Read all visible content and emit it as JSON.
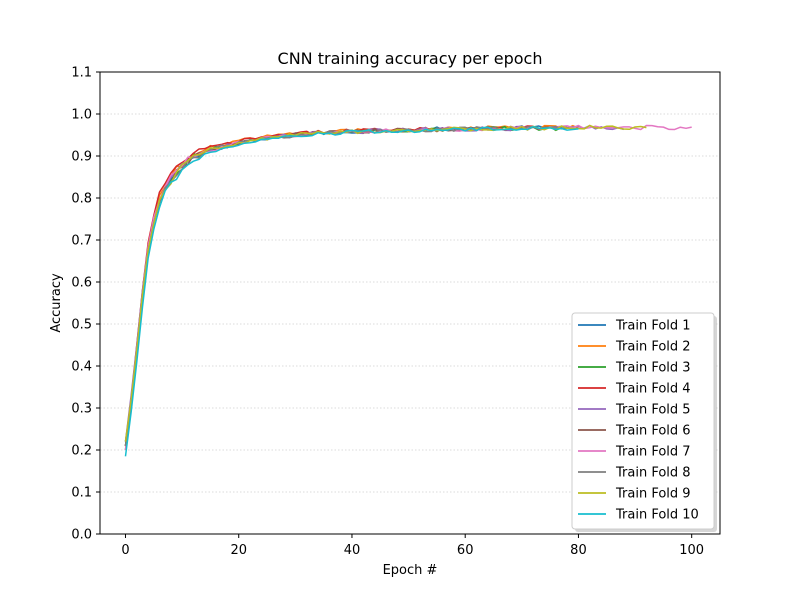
{
  "chart_data": {
    "type": "line",
    "title": "CNN training accuracy per epoch",
    "xlabel": "Epoch #",
    "ylabel": "Accuracy",
    "xlim": [
      -4.5,
      105
    ],
    "ylim": [
      0,
      1.1
    ],
    "xticks": [
      0,
      20,
      40,
      60,
      80,
      100
    ],
    "yticks": [
      0.0,
      0.1,
      0.2,
      0.3,
      0.4,
      0.5,
      0.6,
      0.7,
      0.8,
      0.9,
      1.0,
      1.1
    ],
    "grid": "horizontal dotted",
    "legend_position": "lower-right",
    "series": [
      {
        "name": "Train Fold 1",
        "color": "#1f77b4",
        "last_epoch": 78,
        "start": 0.22,
        "x": [
          0,
          1,
          2,
          3,
          4,
          5,
          6,
          7,
          8,
          9,
          10,
          12,
          15,
          20,
          25,
          30,
          35,
          40,
          45,
          50,
          55,
          60,
          65,
          70,
          75,
          78
        ],
        "values": [
          0.22,
          0.31,
          0.42,
          0.56,
          0.67,
          0.74,
          0.79,
          0.82,
          0.84,
          0.86,
          0.87,
          0.9,
          0.915,
          0.93,
          0.94,
          0.95,
          0.955,
          0.958,
          0.96,
          0.962,
          0.964,
          0.965,
          0.966,
          0.967,
          0.967,
          0.968
        ]
      },
      {
        "name": "Train Fold 2",
        "color": "#ff7f0e",
        "last_epoch": 80,
        "start": 0.21,
        "x": [
          0,
          1,
          2,
          3,
          4,
          5,
          6,
          7,
          8,
          9,
          10,
          12,
          15,
          20,
          25,
          30,
          35,
          40,
          45,
          50,
          55,
          60,
          65,
          70,
          75,
          80
        ],
        "values": [
          0.21,
          0.32,
          0.44,
          0.57,
          0.68,
          0.75,
          0.8,
          0.83,
          0.85,
          0.87,
          0.88,
          0.9,
          0.92,
          0.935,
          0.945,
          0.952,
          0.957,
          0.96,
          0.962,
          0.963,
          0.964,
          0.966,
          0.967,
          0.968,
          0.968,
          0.968
        ]
      },
      {
        "name": "Train Fold 3",
        "color": "#2ca02c",
        "last_epoch": 77,
        "start": 0.21,
        "x": [
          0,
          1,
          2,
          3,
          4,
          5,
          6,
          7,
          8,
          9,
          10,
          12,
          15,
          20,
          25,
          30,
          35,
          40,
          45,
          50,
          55,
          60,
          65,
          70,
          77
        ],
        "values": [
          0.21,
          0.31,
          0.43,
          0.56,
          0.67,
          0.74,
          0.79,
          0.82,
          0.845,
          0.86,
          0.875,
          0.9,
          0.915,
          0.93,
          0.942,
          0.95,
          0.955,
          0.958,
          0.96,
          0.962,
          0.963,
          0.964,
          0.965,
          0.966,
          0.966
        ]
      },
      {
        "name": "Train Fold 4",
        "color": "#d62728",
        "last_epoch": 72,
        "start": 0.2,
        "x": [
          0,
          1,
          2,
          3,
          4,
          5,
          6,
          7,
          8,
          9,
          10,
          12,
          15,
          20,
          25,
          30,
          35,
          40,
          45,
          50,
          55,
          60,
          65,
          72
        ],
        "values": [
          0.2,
          0.32,
          0.45,
          0.58,
          0.69,
          0.76,
          0.81,
          0.835,
          0.855,
          0.87,
          0.88,
          0.91,
          0.92,
          0.935,
          0.945,
          0.952,
          0.957,
          0.96,
          0.962,
          0.963,
          0.965,
          0.966,
          0.967,
          0.968
        ]
      },
      {
        "name": "Train Fold 5",
        "color": "#9467bd",
        "last_epoch": 88,
        "start": 0.22,
        "x": [
          0,
          1,
          2,
          3,
          4,
          5,
          6,
          7,
          8,
          9,
          10,
          12,
          15,
          20,
          25,
          30,
          35,
          40,
          45,
          50,
          55,
          60,
          65,
          70,
          75,
          80,
          85,
          88
        ],
        "values": [
          0.22,
          0.33,
          0.45,
          0.58,
          0.68,
          0.75,
          0.8,
          0.83,
          0.85,
          0.865,
          0.88,
          0.9,
          0.915,
          0.93,
          0.942,
          0.95,
          0.955,
          0.958,
          0.96,
          0.962,
          0.963,
          0.964,
          0.965,
          0.966,
          0.967,
          0.968,
          0.968,
          0.968
        ]
      },
      {
        "name": "Train Fold 6",
        "color": "#8c564b",
        "last_epoch": 75,
        "start": 0.21,
        "x": [
          0,
          1,
          2,
          3,
          4,
          5,
          6,
          7,
          8,
          9,
          10,
          12,
          15,
          20,
          25,
          30,
          35,
          40,
          45,
          50,
          55,
          60,
          65,
          70,
          75
        ],
        "values": [
          0.21,
          0.31,
          0.43,
          0.56,
          0.67,
          0.74,
          0.79,
          0.82,
          0.84,
          0.86,
          0.875,
          0.895,
          0.915,
          0.93,
          0.942,
          0.95,
          0.955,
          0.958,
          0.96,
          0.962,
          0.963,
          0.964,
          0.965,
          0.966,
          0.966
        ]
      },
      {
        "name": "Train Fold 7",
        "color": "#e377c2",
        "last_epoch": 100,
        "start": 0.2,
        "x": [
          0,
          1,
          2,
          3,
          4,
          5,
          6,
          7,
          8,
          9,
          10,
          12,
          15,
          20,
          25,
          30,
          35,
          40,
          45,
          50,
          55,
          60,
          65,
          70,
          75,
          80,
          85,
          90,
          95,
          100
        ],
        "values": [
          0.2,
          0.32,
          0.44,
          0.57,
          0.68,
          0.75,
          0.8,
          0.83,
          0.85,
          0.865,
          0.88,
          0.9,
          0.915,
          0.93,
          0.942,
          0.95,
          0.955,
          0.958,
          0.96,
          0.962,
          0.963,
          0.964,
          0.965,
          0.966,
          0.967,
          0.968,
          0.968,
          0.968,
          0.968,
          0.967
        ]
      },
      {
        "name": "Train Fold 8",
        "color": "#7f7f7f",
        "last_epoch": 79,
        "start": 0.21,
        "x": [
          0,
          1,
          2,
          3,
          4,
          5,
          6,
          7,
          8,
          9,
          10,
          12,
          15,
          20,
          25,
          30,
          35,
          40,
          45,
          50,
          55,
          60,
          65,
          70,
          75,
          79
        ],
        "values": [
          0.21,
          0.31,
          0.43,
          0.56,
          0.67,
          0.74,
          0.79,
          0.82,
          0.84,
          0.86,
          0.875,
          0.895,
          0.915,
          0.93,
          0.942,
          0.95,
          0.955,
          0.958,
          0.96,
          0.962,
          0.963,
          0.964,
          0.965,
          0.966,
          0.966,
          0.966
        ]
      },
      {
        "name": "Train Fold 9",
        "color": "#bcbd22",
        "last_epoch": 92,
        "start": 0.22,
        "x": [
          0,
          1,
          2,
          3,
          4,
          5,
          6,
          7,
          8,
          9,
          10,
          12,
          15,
          20,
          25,
          30,
          35,
          40,
          45,
          50,
          55,
          60,
          65,
          70,
          75,
          80,
          85,
          90,
          92
        ],
        "values": [
          0.22,
          0.32,
          0.44,
          0.57,
          0.67,
          0.74,
          0.79,
          0.82,
          0.84,
          0.86,
          0.875,
          0.895,
          0.915,
          0.93,
          0.942,
          0.95,
          0.955,
          0.958,
          0.96,
          0.962,
          0.963,
          0.964,
          0.965,
          0.966,
          0.967,
          0.968,
          0.968,
          0.966,
          0.966
        ]
      },
      {
        "name": "Train Fold 10",
        "color": "#17becf",
        "last_epoch": 80,
        "start": 0.185,
        "x": [
          0,
          1,
          2,
          3,
          4,
          5,
          6,
          7,
          8,
          9,
          10,
          12,
          15,
          20,
          25,
          30,
          35,
          40,
          45,
          50,
          55,
          60,
          65,
          70,
          75,
          80
        ],
        "values": [
          0.185,
          0.29,
          0.41,
          0.54,
          0.65,
          0.73,
          0.78,
          0.81,
          0.835,
          0.85,
          0.865,
          0.89,
          0.91,
          0.925,
          0.938,
          0.947,
          0.952,
          0.956,
          0.958,
          0.96,
          0.962,
          0.963,
          0.964,
          0.965,
          0.966,
          0.966
        ]
      }
    ]
  }
}
